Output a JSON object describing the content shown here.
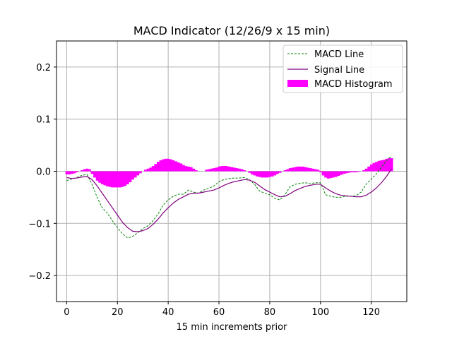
{
  "chart_data": {
    "type": "line",
    "title": "MACD Indicator (12/26/9 x 15 min)",
    "xlabel": "15 min increments prior",
    "ylabel": "",
    "xlim": [
      -4,
      134
    ],
    "ylim": [
      -0.25,
      0.25
    ],
    "xticks": [
      0,
      20,
      40,
      60,
      80,
      100,
      120
    ],
    "yticks": [
      -0.2,
      -0.1,
      0.0,
      0.1,
      0.2
    ],
    "xtick_labels": [
      "0",
      "20",
      "40",
      "60",
      "80",
      "100",
      "120"
    ],
    "ytick_labels": [
      "−0.2",
      "−0.1",
      "0.0",
      "0.1",
      "0.2"
    ],
    "grid": true,
    "legend_position": "top-right",
    "colors": {
      "macd": "#008000",
      "signal": "#800080",
      "histogram": "#ff00ff",
      "grid": "#b0b0b0"
    },
    "series": [
      {
        "name": "MACD Line",
        "style": "dashed",
        "x": [
          0,
          2,
          4,
          6,
          8,
          10,
          12,
          14,
          16,
          18,
          20,
          22,
          24,
          26,
          28,
          30,
          32,
          34,
          36,
          38,
          40,
          42,
          44,
          46,
          48,
          50,
          52,
          54,
          56,
          58,
          60,
          62,
          64,
          66,
          68,
          70,
          72,
          74,
          76,
          78,
          80,
          82,
          84,
          86,
          88,
          90,
          92,
          94,
          96,
          98,
          100,
          102,
          104,
          106,
          108,
          110,
          112,
          114,
          116,
          118,
          120,
          122,
          124,
          126,
          128
        ],
        "values": [
          -0.018,
          -0.015,
          -0.012,
          -0.008,
          -0.006,
          -0.025,
          -0.05,
          -0.07,
          -0.08,
          -0.095,
          -0.108,
          -0.12,
          -0.128,
          -0.125,
          -0.118,
          -0.11,
          -0.105,
          -0.095,
          -0.082,
          -0.065,
          -0.055,
          -0.048,
          -0.044,
          -0.044,
          -0.036,
          -0.04,
          -0.042,
          -0.036,
          -0.033,
          -0.028,
          -0.02,
          -0.016,
          -0.014,
          -0.013,
          -0.013,
          -0.012,
          -0.016,
          -0.025,
          -0.038,
          -0.042,
          -0.045,
          -0.052,
          -0.055,
          -0.045,
          -0.03,
          -0.025,
          -0.023,
          -0.022,
          -0.024,
          -0.022,
          -0.022,
          -0.045,
          -0.048,
          -0.05,
          -0.05,
          -0.048,
          -0.048,
          -0.047,
          -0.04,
          -0.025,
          -0.015,
          -0.005,
          0.008,
          0.02,
          0.03
        ]
      },
      {
        "name": "Signal Line",
        "style": "solid",
        "x": [
          0,
          2,
          4,
          6,
          8,
          10,
          12,
          14,
          16,
          18,
          20,
          22,
          24,
          26,
          28,
          30,
          32,
          34,
          36,
          38,
          40,
          42,
          44,
          46,
          48,
          50,
          52,
          54,
          56,
          58,
          60,
          62,
          64,
          66,
          68,
          70,
          72,
          74,
          76,
          78,
          80,
          82,
          84,
          86,
          88,
          90,
          92,
          94,
          96,
          98,
          100,
          102,
          104,
          106,
          108,
          110,
          112,
          114,
          116,
          118,
          120,
          122,
          124,
          126,
          128
        ],
        "values": [
          -0.012,
          -0.014,
          -0.013,
          -0.011,
          -0.01,
          -0.016,
          -0.028,
          -0.042,
          -0.056,
          -0.07,
          -0.084,
          -0.098,
          -0.108,
          -0.115,
          -0.116,
          -0.114,
          -0.11,
          -0.102,
          -0.092,
          -0.08,
          -0.07,
          -0.061,
          -0.054,
          -0.049,
          -0.044,
          -0.042,
          -0.042,
          -0.04,
          -0.038,
          -0.036,
          -0.032,
          -0.027,
          -0.023,
          -0.02,
          -0.018,
          -0.016,
          -0.017,
          -0.021,
          -0.028,
          -0.035,
          -0.04,
          -0.045,
          -0.049,
          -0.048,
          -0.043,
          -0.037,
          -0.033,
          -0.029,
          -0.027,
          -0.025,
          -0.025,
          -0.032,
          -0.038,
          -0.043,
          -0.046,
          -0.047,
          -0.048,
          -0.049,
          -0.049,
          -0.046,
          -0.04,
          -0.032,
          -0.022,
          -0.01,
          0.005
        ]
      }
    ],
    "histogram": {
      "name": "MACD Histogram",
      "x": [
        0,
        1,
        2,
        3,
        4,
        5,
        6,
        7,
        8,
        9,
        10,
        11,
        12,
        13,
        14,
        15,
        16,
        17,
        18,
        19,
        20,
        21,
        22,
        23,
        24,
        25,
        26,
        27,
        28,
        29,
        30,
        31,
        32,
        33,
        34,
        35,
        36,
        37,
        38,
        39,
        40,
        41,
        42,
        43,
        44,
        45,
        46,
        47,
        48,
        49,
        50,
        51,
        52,
        53,
        54,
        55,
        56,
        57,
        58,
        59,
        60,
        61,
        62,
        63,
        64,
        65,
        66,
        67,
        68,
        69,
        70,
        71,
        72,
        73,
        74,
        75,
        76,
        77,
        78,
        79,
        80,
        81,
        82,
        83,
        84,
        85,
        86,
        87,
        88,
        89,
        90,
        91,
        92,
        93,
        94,
        95,
        96,
        97,
        98,
        99,
        100,
        101,
        102,
        103,
        104,
        105,
        106,
        107,
        108,
        109,
        110,
        111,
        112,
        113,
        114,
        115,
        116,
        117,
        118,
        119,
        120,
        121,
        122,
        123,
        124,
        125,
        126,
        127,
        128
      ],
      "values": [
        -0.006,
        -0.006,
        -0.005,
        -0.004,
        -0.002,
        0.0,
        0.002,
        0.004,
        0.005,
        0.004,
        -0.005,
        -0.012,
        -0.018,
        -0.022,
        -0.025,
        -0.027,
        -0.029,
        -0.03,
        -0.031,
        -0.031,
        -0.031,
        -0.031,
        -0.03,
        -0.028,
        -0.025,
        -0.021,
        -0.016,
        -0.012,
        -0.008,
        -0.004,
        0.0,
        0.003,
        0.005,
        0.007,
        0.01,
        0.014,
        0.018,
        0.021,
        0.023,
        0.024,
        0.024,
        0.023,
        0.021,
        0.019,
        0.017,
        0.015,
        0.012,
        0.01,
        0.009,
        0.008,
        0.005,
        0.002,
        0.0,
        0.0,
        0.0,
        0.003,
        0.004,
        0.005,
        0.006,
        0.007,
        0.009,
        0.01,
        0.01,
        0.01,
        0.009,
        0.008,
        0.007,
        0.006,
        0.005,
        0.004,
        0.002,
        0.0,
        -0.003,
        -0.006,
        -0.008,
        -0.01,
        -0.011,
        -0.012,
        -0.012,
        -0.012,
        -0.011,
        -0.01,
        -0.008,
        -0.005,
        -0.003,
        0.0,
        0.002,
        0.004,
        0.006,
        0.007,
        0.008,
        0.009,
        0.009,
        0.009,
        0.008,
        0.007,
        0.006,
        0.005,
        0.004,
        0.003,
        -0.002,
        -0.008,
        -0.012,
        -0.014,
        -0.013,
        -0.012,
        -0.011,
        -0.009,
        -0.007,
        -0.005,
        -0.004,
        -0.003,
        -0.002,
        -0.002,
        -0.002,
        -0.001,
        0.0,
        0.002,
        0.005,
        0.009,
        0.013,
        0.016,
        0.018,
        0.02,
        0.021,
        0.022,
        0.024,
        0.025,
        0.025
      ]
    }
  }
}
